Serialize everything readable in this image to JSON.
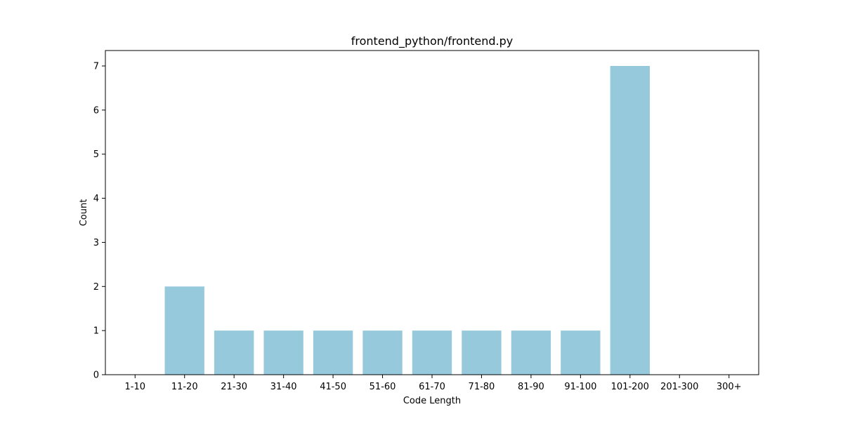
{
  "chart_data": {
    "type": "bar",
    "title": "frontend_python/frontend.py",
    "xlabel": "Code Length",
    "ylabel": "Count",
    "categories": [
      "1-10",
      "11-20",
      "21-30",
      "31-40",
      "41-50",
      "51-60",
      "61-70",
      "71-80",
      "81-90",
      "91-100",
      "101-200",
      "201-300",
      "300+"
    ],
    "values": [
      0,
      2,
      1,
      1,
      1,
      1,
      1,
      1,
      1,
      1,
      7,
      0,
      0
    ],
    "ylim": [
      0,
      7.35
    ],
    "yticks": [
      0,
      1,
      2,
      3,
      4,
      5,
      6,
      7
    ],
    "grid": false,
    "legend": "none",
    "bar_color": "#96c9dc"
  }
}
